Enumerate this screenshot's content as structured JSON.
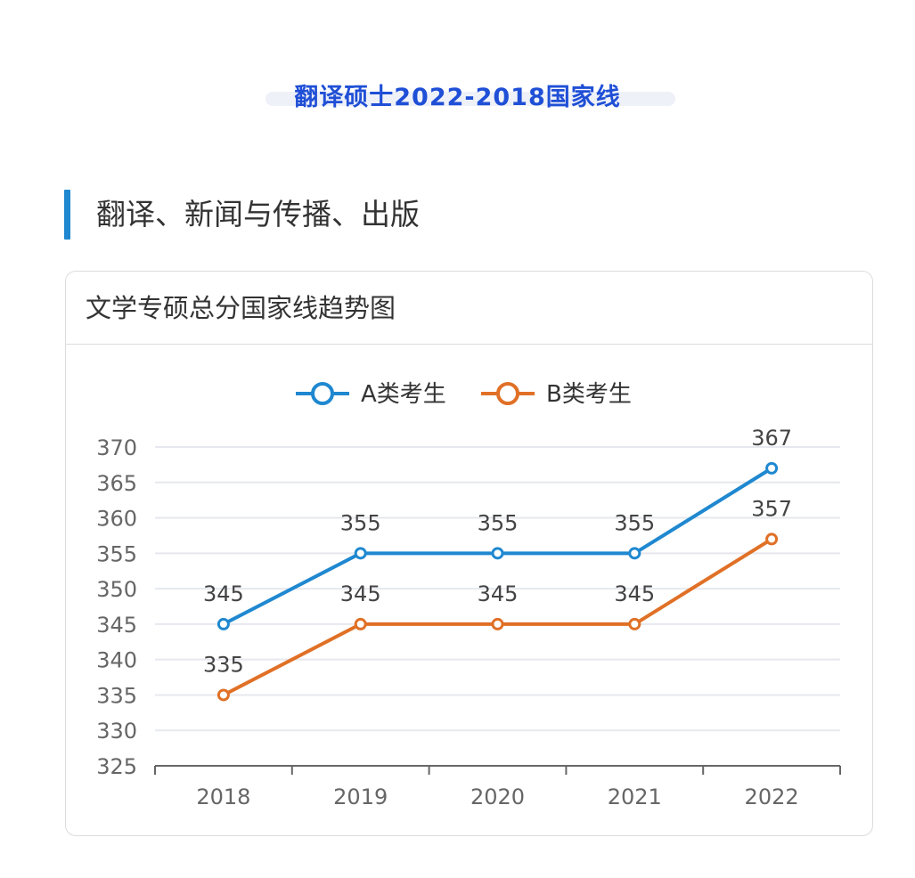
{
  "headline": "翻译硕士2022-2018国家线",
  "section": {
    "title": "翻译、新闻与传播、出版"
  },
  "card": {
    "title": "文学专硕总分国家线趋势图"
  },
  "colors": {
    "headline": "#1f4fd6",
    "accent": "#1f88d0",
    "series_a": "#1f88d0",
    "series_b": "#e07026",
    "grid": "#e6e8ee",
    "axis": "#666666"
  },
  "chart_data": {
    "type": "line",
    "title": "文学专硕总分国家线趋势图",
    "xlabel": "",
    "ylabel": "",
    "categories": [
      "2018",
      "2019",
      "2020",
      "2021",
      "2022"
    ],
    "ylim": [
      325,
      370
    ],
    "yticks": [
      325,
      330,
      335,
      340,
      345,
      350,
      355,
      360,
      365,
      370
    ],
    "grid": true,
    "legend": "top-center",
    "series": [
      {
        "name": "A类考生",
        "values": [
          345,
          355,
          355,
          355,
          367
        ]
      },
      {
        "name": "B类考生",
        "values": [
          335,
          345,
          345,
          345,
          357
        ]
      }
    ]
  }
}
